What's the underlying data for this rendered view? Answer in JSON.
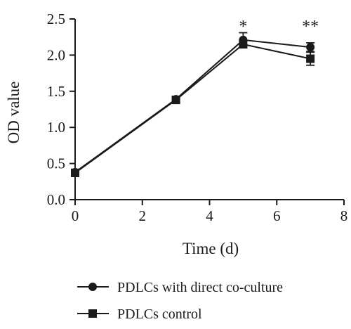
{
  "chart_data": {
    "type": "line",
    "xlabel": "Time (d)",
    "ylabel": "OD value",
    "xlim": [
      0,
      8
    ],
    "ylim": [
      0,
      2.5
    ],
    "x_ticks": [
      "0",
      "2",
      "4",
      "6",
      "8"
    ],
    "y_ticks": [
      "0.0",
      "0.5",
      "1.0",
      "1.5",
      "2.0",
      "2.5"
    ],
    "x": [
      0,
      3,
      5,
      7
    ],
    "series": [
      {
        "name": "PDLCs with direct co-culture",
        "marker": "circle",
        "values": [
          0.38,
          1.39,
          2.21,
          2.11
        ],
        "errors": [
          0.04,
          0.04,
          0.1,
          0.06
        ]
      },
      {
        "name": "PDLCs control",
        "marker": "square",
        "values": [
          0.37,
          1.38,
          2.15,
          1.95
        ],
        "errors": [
          0.05,
          0.04,
          0.05,
          0.09
        ]
      }
    ],
    "annotations": [
      {
        "x": 5,
        "text": "*"
      },
      {
        "x": 7,
        "text": "**"
      }
    ],
    "grid": false,
    "legend_position": "bottom"
  },
  "colors": {
    "line": "#1a1a1a",
    "background": "#ffffff"
  }
}
